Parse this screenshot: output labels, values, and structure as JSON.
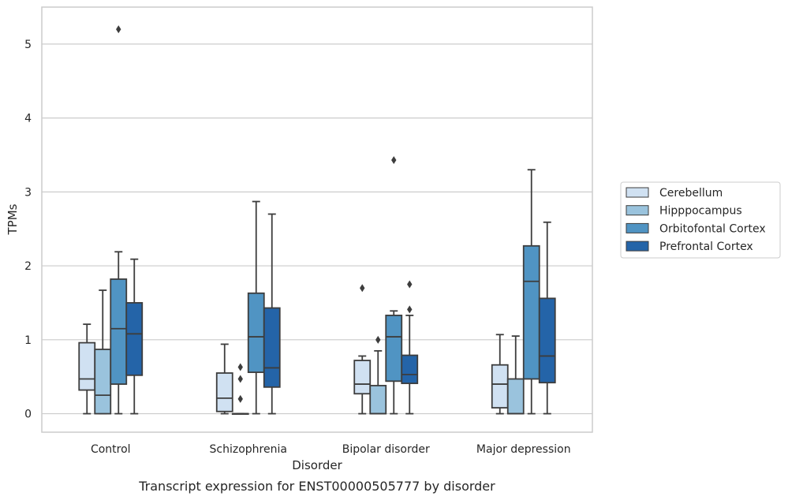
{
  "chart_data": {
    "type": "box",
    "title": "Transcript expression for ENST00000505777 by disorder",
    "xlabel": "Disorder",
    "ylabel": "TPMs",
    "ylim": [
      -0.25,
      5.5
    ],
    "yticks": [
      0,
      1,
      2,
      3,
      4,
      5
    ],
    "grid": "horizontal",
    "legend_position": "right",
    "categories": [
      "Control",
      "Schizophrenia",
      "Bipolar disorder",
      "Major depression"
    ],
    "series": [
      {
        "name": "Cerebellum",
        "color": "#d0e1f2",
        "boxes": [
          {
            "whisker_low": 0,
            "q1": 0.32,
            "median": 0.47,
            "q3": 0.96,
            "whisker_high": 1.21,
            "outliers": []
          },
          {
            "whisker_low": 0,
            "q1": 0.03,
            "median": 0.21,
            "q3": 0.55,
            "whisker_high": 0.94,
            "outliers": []
          },
          {
            "whisker_low": 0,
            "q1": 0.27,
            "median": 0.4,
            "q3": 0.72,
            "whisker_high": 0.78,
            "outliers": [
              1.7
            ]
          },
          {
            "whisker_low": 0,
            "q1": 0.08,
            "median": 0.4,
            "q3": 0.66,
            "whisker_high": 1.07,
            "outliers": []
          }
        ]
      },
      {
        "name": "Hipppocampus",
        "color": "#9ac3dd",
        "boxes": [
          {
            "whisker_low": 0,
            "q1": 0,
            "median": 0.25,
            "q3": 0.87,
            "whisker_high": 1.67,
            "outliers": []
          },
          {
            "whisker_low": 0,
            "q1": 0,
            "median": 0,
            "q3": 0,
            "whisker_high": 0,
            "outliers": [
              0.2,
              0.47,
              0.63
            ]
          },
          {
            "whisker_low": 0,
            "q1": 0,
            "median": 0,
            "q3": 0.38,
            "whisker_high": 0.85,
            "outliers": [
              1.0
            ]
          },
          {
            "whisker_low": 0,
            "q1": 0,
            "median": 0,
            "q3": 0.47,
            "whisker_high": 1.05,
            "outliers": []
          }
        ]
      },
      {
        "name": "Orbitofontal Cortex",
        "color": "#5094c3",
        "boxes": [
          {
            "whisker_low": 0,
            "q1": 0.4,
            "median": 1.15,
            "q3": 1.82,
            "whisker_high": 2.19,
            "outliers": [
              5.2
            ]
          },
          {
            "whisker_low": 0,
            "q1": 0.56,
            "median": 1.04,
            "q3": 1.63,
            "whisker_high": 2.87,
            "outliers": []
          },
          {
            "whisker_low": 0,
            "q1": 0.44,
            "median": 1.04,
            "q3": 1.33,
            "whisker_high": 1.39,
            "outliers": [
              3.43
            ]
          },
          {
            "whisker_low": 0,
            "q1": 0.47,
            "median": 1.79,
            "q3": 2.27,
            "whisker_high": 3.3,
            "outliers": []
          }
        ]
      },
      {
        "name": "Prefrontal Cortex",
        "color": "#2464a8",
        "boxes": [
          {
            "whisker_low": 0,
            "q1": 0.52,
            "median": 1.08,
            "q3": 1.5,
            "whisker_high": 2.09,
            "outliers": []
          },
          {
            "whisker_low": 0,
            "q1": 0.36,
            "median": 0.62,
            "q3": 1.43,
            "whisker_high": 2.7,
            "outliers": []
          },
          {
            "whisker_low": 0,
            "q1": 0.41,
            "median": 0.53,
            "q3": 0.79,
            "whisker_high": 1.33,
            "outliers": [
              1.41,
              1.75
            ]
          },
          {
            "whisker_low": 0,
            "q1": 0.42,
            "median": 0.78,
            "q3": 1.56,
            "whisker_high": 2.59,
            "outliers": []
          }
        ]
      }
    ]
  }
}
